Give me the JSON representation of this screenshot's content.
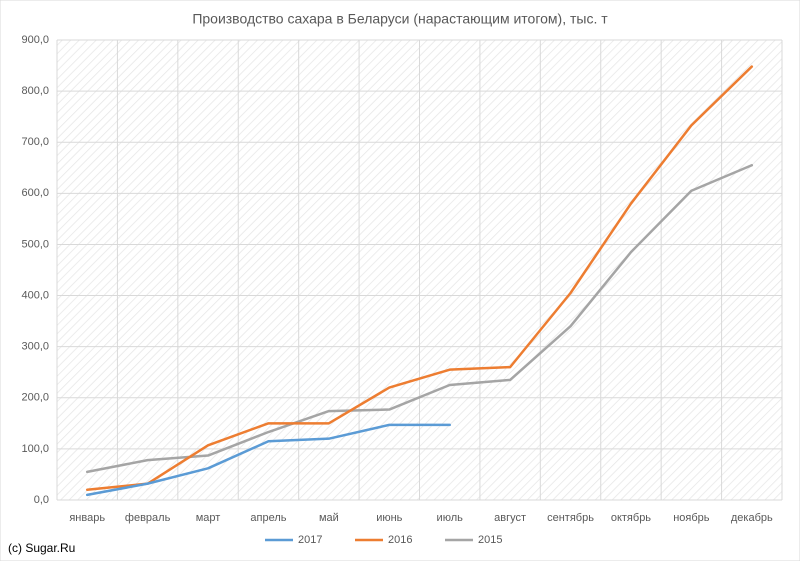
{
  "chart_data": {
    "type": "line",
    "title": "Производство сахара в Беларуси (нарастающим итогом), тыс. т",
    "annotation": "(c) Sugar.Ru",
    "categories": [
      "январь",
      "февраль",
      "март",
      "апрель",
      "май",
      "июнь",
      "июль",
      "август",
      "сентябрь",
      "октябрь",
      "ноябрь",
      "декабрь"
    ],
    "series": [
      {
        "name": "2017",
        "color": "#5b9bd5",
        "values": [
          10,
          32,
          62,
          115,
          120,
          147,
          147,
          null,
          null,
          null,
          null,
          null
        ]
      },
      {
        "name": "2016",
        "color": "#ed7d31",
        "values": [
          20,
          32,
          107,
          150,
          150,
          220,
          255,
          260,
          405,
          580,
          733,
          848
        ]
      },
      {
        "name": "2015",
        "color": "#a5a5a5",
        "values": [
          55,
          78,
          87,
          133,
          174,
          177,
          225,
          235,
          340,
          485,
          605,
          655
        ]
      }
    ],
    "ylim": [
      0,
      900
    ],
    "yticks": [
      {
        "value": 0,
        "label": "0,0"
      },
      {
        "value": 100,
        "label": "100,0"
      },
      {
        "value": 200,
        "label": "200,0"
      },
      {
        "value": 300,
        "label": "300,0"
      },
      {
        "value": 400,
        "label": "400,0"
      },
      {
        "value": 500,
        "label": "500,0"
      },
      {
        "value": 600,
        "label": "600,0"
      },
      {
        "value": 700,
        "label": "700,0"
      },
      {
        "value": 800,
        "label": "800,0"
      },
      {
        "value": 900,
        "label": "900,0"
      }
    ],
    "grid": true,
    "legend": "bottom"
  }
}
